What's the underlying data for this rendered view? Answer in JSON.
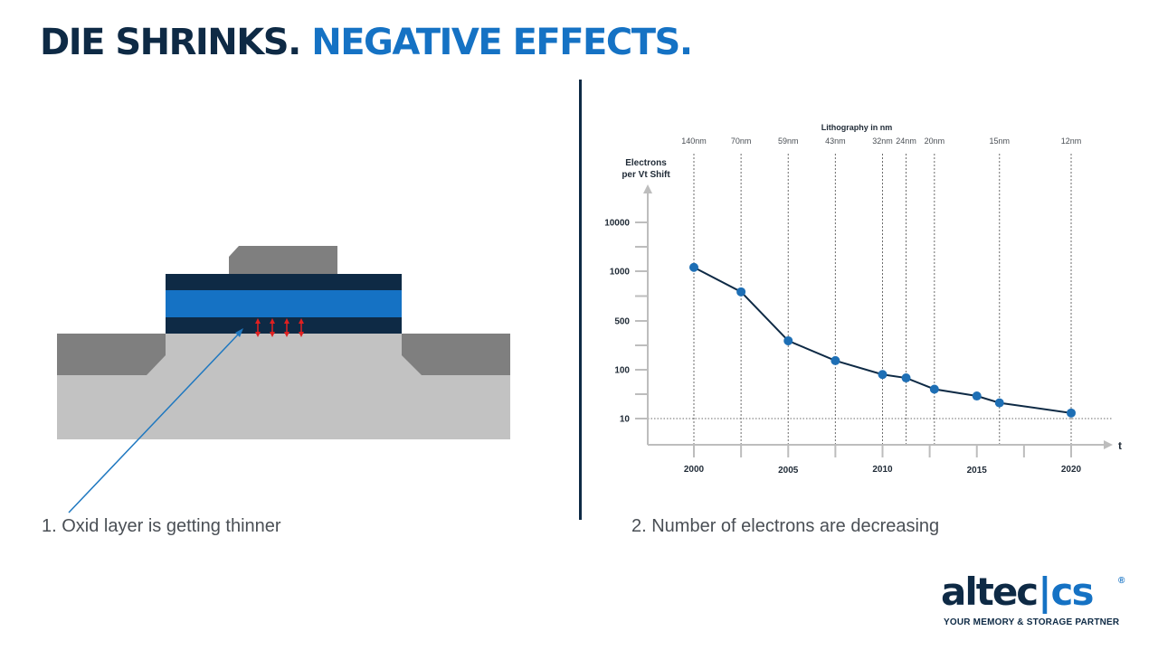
{
  "title": {
    "part1": "DIE SHRINKS.",
    "part2": "NEGATIVE EFFECTS."
  },
  "captions": {
    "left": "1. Oxid layer is getting thinner",
    "right": "2. Number of electrons are decreasing"
  },
  "chart_data": {
    "type": "line",
    "title": "Lithography in nm",
    "ylabel": "Electrons per Vt Shift",
    "ylabel_line1": "Electrons",
    "ylabel_line2": "per Vt Shift",
    "xlabel": "t",
    "x_ticks": [
      "2000",
      "2005",
      "2010",
      "2015",
      "2020"
    ],
    "y_ticks": [
      "10000",
      "1000",
      "500",
      "100",
      "10"
    ],
    "nodes": [
      {
        "label": "140nm",
        "year": 2000
      },
      {
        "label": "70nm",
        "year": 2002.5
      },
      {
        "label": "59nm",
        "year": 2005
      },
      {
        "label": "43nm",
        "year": 2007.5
      },
      {
        "label": "32nm",
        "year": 2010
      },
      {
        "label": "24nm",
        "year": 2011.25
      },
      {
        "label": "20nm",
        "year": 2012.75
      },
      {
        "label": "15nm",
        "year": 2016.2
      },
      {
        "label": "12nm",
        "year": 2020
      }
    ],
    "series": [
      {
        "name": "Electrons per Vt Shift",
        "points": [
          {
            "year": 2000,
            "value": 1200
          },
          {
            "year": 2002.5,
            "value": 750
          },
          {
            "year": 2005,
            "value": 260
          },
          {
            "year": 2007.5,
            "value": 135
          },
          {
            "year": 2010,
            "value": 80
          },
          {
            "year": 2011.25,
            "value": 68
          },
          {
            "year": 2012.75,
            "value": 40
          },
          {
            "year": 2015,
            "value": 29
          },
          {
            "year": 2016.2,
            "value": 21
          },
          {
            "year": 2020,
            "value": 13
          }
        ]
      }
    ],
    "reference_line": {
      "value": 10
    }
  },
  "logo": {
    "main": "altec",
    "sep": "|",
    "suffix": "cs",
    "reg": "®",
    "tagline": "YOUR MEMORY & STORAGE PARTNER"
  },
  "colors": {
    "navy": "#0e2a45",
    "blue": "#1572c4",
    "point": "#1e6fb5",
    "arrow": "#e02020"
  }
}
